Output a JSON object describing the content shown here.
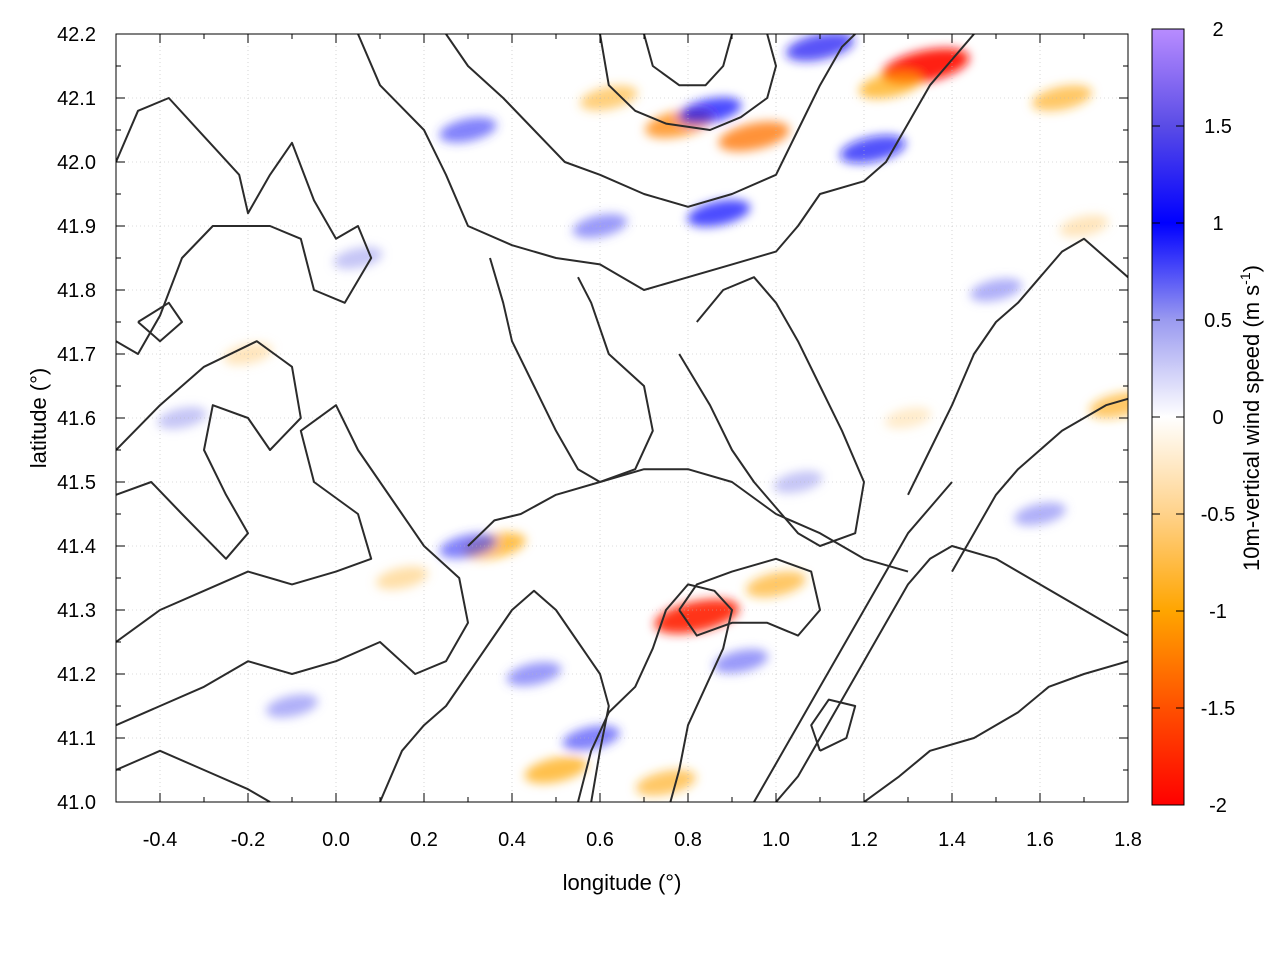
{
  "chart_data": {
    "type": "heatmap",
    "xlabel": "longitude (°)",
    "ylabel": "latitude (°)",
    "xlim": [
      -0.5,
      1.8
    ],
    "ylim": [
      41.0,
      42.2
    ],
    "x_ticks": [
      -0.4,
      -0.2,
      0.0,
      0.2,
      0.4,
      0.6,
      0.8,
      1.0,
      1.2,
      1.4,
      1.6,
      1.8
    ],
    "x_tick_labels": [
      "-0.4",
      "-0.2",
      "0.0",
      "0.2",
      "0.4",
      "0.6",
      "0.8",
      "1.0",
      "1.2",
      "1.4",
      "1.6",
      "1.8"
    ],
    "y_ticks": [
      41.0,
      41.1,
      41.2,
      41.3,
      41.4,
      41.5,
      41.6,
      41.7,
      41.8,
      41.9,
      42.0,
      42.1,
      42.2
    ],
    "y_tick_labels": [
      "41.0",
      "41.1",
      "41.2",
      "41.3",
      "41.4",
      "41.5",
      "41.6",
      "41.7",
      "41.8",
      "41.9",
      "42.0",
      "42.1",
      "42.2"
    ],
    "grid": true,
    "colorbar": {
      "label_main": "10m-vertical wind speed (m s",
      "label_sup": "-1",
      "label_close": ")",
      "range": [
        -2,
        2
      ],
      "ticks": [
        -2,
        -1.5,
        -1,
        -0.5,
        0,
        0.5,
        1,
        1.5,
        2
      ],
      "tick_labels": [
        "-2",
        "-1.5",
        "-1",
        "-0.5",
        "0",
        "0.5",
        "1",
        "1.5",
        "2"
      ],
      "colors": [
        {
          "v": -2.0,
          "c": "#ff0000"
        },
        {
          "v": -1.5,
          "c": "#ff5000"
        },
        {
          "v": -1.0,
          "c": "#ffa500"
        },
        {
          "v": -0.5,
          "c": "#ffd28a"
        },
        {
          "v": 0.0,
          "c": "#ffffff"
        },
        {
          "v": 0.5,
          "c": "#9a9af0"
        },
        {
          "v": 1.0,
          "c": "#0000ff"
        },
        {
          "v": 1.5,
          "c": "#5a4ce6"
        },
        {
          "v": 2.0,
          "c": "#b88cff"
        }
      ]
    },
    "hotspots": [
      {
        "lon": 1.34,
        "lat": 42.15,
        "value": -1.9
      },
      {
        "lon": 1.26,
        "lat": 42.12,
        "value": -1.0
      },
      {
        "lon": 1.65,
        "lat": 42.1,
        "value": -0.9
      },
      {
        "lon": 0.78,
        "lat": 42.06,
        "value": -1.2
      },
      {
        "lon": 0.95,
        "lat": 42.04,
        "value": -1.3
      },
      {
        "lon": 0.82,
        "lat": 41.29,
        "value": -1.8
      },
      {
        "lon": 0.36,
        "lat": 41.4,
        "value": -1.0
      },
      {
        "lon": 0.5,
        "lat": 41.05,
        "value": -1.0
      },
      {
        "lon": 0.75,
        "lat": 41.03,
        "value": -0.9
      },
      {
        "lon": 1.0,
        "lat": 41.34,
        "value": -0.9
      },
      {
        "lon": 1.78,
        "lat": 41.62,
        "value": -0.9
      },
      {
        "lon": 0.62,
        "lat": 42.1,
        "value": -0.8
      },
      {
        "lon": 1.1,
        "lat": 42.18,
        "value": 1.2
      },
      {
        "lon": 0.85,
        "lat": 42.08,
        "value": 1.0
      },
      {
        "lon": 1.22,
        "lat": 42.02,
        "value": 1.1
      },
      {
        "lon": 0.3,
        "lat": 42.05,
        "value": 0.8
      },
      {
        "lon": 0.87,
        "lat": 41.92,
        "value": 1.0
      },
      {
        "lon": 0.6,
        "lat": 41.9,
        "value": 0.7
      },
      {
        "lon": 0.3,
        "lat": 41.4,
        "value": 0.8
      },
      {
        "lon": 0.45,
        "lat": 41.2,
        "value": 0.7
      },
      {
        "lon": 0.92,
        "lat": 41.22,
        "value": 0.7
      },
      {
        "lon": 0.58,
        "lat": 41.1,
        "value": 0.8
      },
      {
        "lon": 1.5,
        "lat": 41.8,
        "value": 0.6
      },
      {
        "lon": 1.6,
        "lat": 41.45,
        "value": 0.6
      },
      {
        "lon": -0.35,
        "lat": 41.6,
        "value": 0.5
      },
      {
        "lon": -0.1,
        "lat": 41.15,
        "value": 0.6
      },
      {
        "lon": 1.7,
        "lat": 41.9,
        "value": -0.5
      },
      {
        "lon": -0.2,
        "lat": 41.7,
        "value": -0.5
      },
      {
        "lon": 1.3,
        "lat": 41.6,
        "value": -0.4
      },
      {
        "lon": 0.15,
        "lat": 41.35,
        "value": -0.6
      },
      {
        "lon": 0.05,
        "lat": 41.85,
        "value": 0.5
      },
      {
        "lon": 1.05,
        "lat": 41.5,
        "value": 0.5
      }
    ],
    "contours": [
      [
        [
          -0.5,
          42.0
        ],
        [
          -0.45,
          42.08
        ],
        [
          -0.38,
          42.1
        ],
        [
          -0.3,
          42.04
        ],
        [
          -0.22,
          41.98
        ],
        [
          -0.2,
          41.92
        ],
        [
          -0.15,
          41.98
        ],
        [
          -0.1,
          42.03
        ],
        [
          -0.05,
          41.94
        ],
        [
          0.0,
          41.88
        ],
        [
          0.05,
          41.9
        ],
        [
          0.08,
          41.85
        ],
        [
          0.02,
          41.78
        ],
        [
          -0.05,
          41.8
        ],
        [
          -0.08,
          41.88
        ],
        [
          -0.15,
          41.9
        ],
        [
          -0.28,
          41.9
        ],
        [
          -0.35,
          41.85
        ],
        [
          -0.4,
          41.76
        ],
        [
          -0.45,
          41.7
        ],
        [
          -0.5,
          41.72
        ]
      ],
      [
        [
          -0.5,
          41.55
        ],
        [
          -0.4,
          41.62
        ],
        [
          -0.3,
          41.68
        ],
        [
          -0.18,
          41.72
        ],
        [
          -0.1,
          41.68
        ],
        [
          -0.08,
          41.6
        ],
        [
          -0.15,
          41.55
        ],
        [
          -0.2,
          41.6
        ],
        [
          -0.28,
          41.62
        ],
        [
          -0.3,
          41.55
        ],
        [
          -0.25,
          41.48
        ],
        [
          -0.2,
          41.42
        ],
        [
          -0.25,
          41.38
        ],
        [
          -0.35,
          41.45
        ],
        [
          -0.42,
          41.5
        ],
        [
          -0.5,
          41.48
        ]
      ],
      [
        [
          -0.5,
          41.25
        ],
        [
          -0.4,
          41.3
        ],
        [
          -0.3,
          41.33
        ],
        [
          -0.2,
          41.36
        ],
        [
          -0.1,
          41.34
        ],
        [
          0.0,
          41.36
        ],
        [
          0.08,
          41.38
        ],
        [
          0.05,
          41.45
        ],
        [
          -0.05,
          41.5
        ],
        [
          -0.08,
          41.58
        ],
        [
          0.0,
          41.62
        ],
        [
          0.05,
          41.55
        ],
        [
          0.1,
          41.5
        ],
        [
          0.15,
          41.45
        ],
        [
          0.2,
          41.4
        ],
        [
          0.28,
          41.35
        ],
        [
          0.3,
          41.28
        ],
        [
          0.25,
          41.22
        ],
        [
          0.18,
          41.2
        ],
        [
          0.1,
          41.25
        ],
        [
          0.0,
          41.22
        ],
        [
          -0.1,
          41.2
        ],
        [
          -0.2,
          41.22
        ],
        [
          -0.3,
          41.18
        ],
        [
          -0.4,
          41.15
        ],
        [
          -0.5,
          41.12
        ]
      ],
      [
        [
          -0.5,
          41.05
        ],
        [
          -0.4,
          41.08
        ],
        [
          -0.3,
          41.05
        ],
        [
          -0.2,
          41.02
        ],
        [
          -0.15,
          41.0
        ]
      ],
      [
        [
          0.05,
          42.2
        ],
        [
          0.1,
          42.12
        ],
        [
          0.2,
          42.05
        ],
        [
          0.25,
          41.98
        ],
        [
          0.3,
          41.9
        ],
        [
          0.4,
          41.87
        ],
        [
          0.5,
          41.85
        ],
        [
          0.6,
          41.84
        ],
        [
          0.7,
          41.8
        ],
        [
          0.8,
          41.82
        ],
        [
          0.9,
          41.84
        ],
        [
          1.0,
          41.86
        ],
        [
          1.05,
          41.9
        ],
        [
          1.1,
          41.95
        ],
        [
          1.2,
          41.97
        ],
        [
          1.25,
          42.0
        ],
        [
          1.3,
          42.06
        ],
        [
          1.35,
          42.12
        ],
        [
          1.4,
          42.16
        ],
        [
          1.45,
          42.2
        ]
      ],
      [
        [
          0.25,
          42.2
        ],
        [
          0.3,
          42.15
        ],
        [
          0.38,
          42.1
        ],
        [
          0.45,
          42.05
        ],
        [
          0.52,
          42.0
        ],
        [
          0.6,
          41.98
        ],
        [
          0.7,
          41.95
        ],
        [
          0.8,
          41.93
        ],
        [
          0.9,
          41.95
        ],
        [
          1.0,
          41.98
        ],
        [
          1.05,
          42.05
        ],
        [
          1.1,
          42.12
        ],
        [
          1.15,
          42.18
        ],
        [
          1.18,
          42.2
        ]
      ],
      [
        [
          0.6,
          42.2
        ],
        [
          0.62,
          42.12
        ],
        [
          0.68,
          42.08
        ],
        [
          0.75,
          42.06
        ],
        [
          0.85,
          42.05
        ],
        [
          0.92,
          42.07
        ],
        [
          0.98,
          42.1
        ],
        [
          1.0,
          42.15
        ],
        [
          0.98,
          42.2
        ]
      ],
      [
        [
          0.7,
          42.2
        ],
        [
          0.72,
          42.15
        ],
        [
          0.78,
          42.12
        ],
        [
          0.84,
          42.12
        ],
        [
          0.88,
          42.15
        ],
        [
          0.9,
          42.2
        ]
      ],
      [
        [
          0.35,
          41.85
        ],
        [
          0.38,
          41.78
        ],
        [
          0.4,
          41.72
        ],
        [
          0.45,
          41.65
        ],
        [
          0.5,
          41.58
        ],
        [
          0.55,
          41.52
        ],
        [
          0.6,
          41.5
        ],
        [
          0.68,
          41.52
        ],
        [
          0.72,
          41.58
        ],
        [
          0.7,
          41.65
        ],
        [
          0.62,
          41.7
        ],
        [
          0.58,
          41.78
        ],
        [
          0.55,
          41.82
        ]
      ],
      [
        [
          0.78,
          41.7
        ],
        [
          0.85,
          41.62
        ],
        [
          0.9,
          41.55
        ],
        [
          0.95,
          41.5
        ],
        [
          1.0,
          41.46
        ],
        [
          1.05,
          41.42
        ],
        [
          1.1,
          41.4
        ],
        [
          1.18,
          41.42
        ],
        [
          1.2,
          41.5
        ],
        [
          1.15,
          41.58
        ],
        [
          1.1,
          41.65
        ],
        [
          1.05,
          41.72
        ],
        [
          1.0,
          41.78
        ],
        [
          0.95,
          41.82
        ],
        [
          0.88,
          41.8
        ],
        [
          0.82,
          41.75
        ]
      ],
      [
        [
          1.3,
          41.48
        ],
        [
          1.35,
          41.55
        ],
        [
          1.4,
          41.62
        ],
        [
          1.45,
          41.7
        ],
        [
          1.5,
          41.75
        ],
        [
          1.55,
          41.78
        ],
        [
          1.6,
          41.82
        ],
        [
          1.65,
          41.86
        ],
        [
          1.7,
          41.88
        ],
        [
          1.75,
          41.85
        ],
        [
          1.8,
          41.82
        ]
      ],
      [
        [
          1.4,
          41.36
        ],
        [
          1.45,
          41.42
        ],
        [
          1.5,
          41.48
        ],
        [
          1.55,
          41.52
        ],
        [
          1.6,
          41.55
        ],
        [
          1.65,
          41.58
        ],
        [
          1.7,
          41.6
        ],
        [
          1.75,
          41.62
        ],
        [
          1.8,
          41.63
        ]
      ],
      [
        [
          0.1,
          41.0
        ],
        [
          0.15,
          41.08
        ],
        [
          0.2,
          41.12
        ],
        [
          0.25,
          41.15
        ],
        [
          0.3,
          41.2
        ],
        [
          0.35,
          41.25
        ],
        [
          0.4,
          41.3
        ],
        [
          0.45,
          41.33
        ],
        [
          0.5,
          41.3
        ],
        [
          0.55,
          41.25
        ],
        [
          0.6,
          41.2
        ],
        [
          0.62,
          41.15
        ],
        [
          0.6,
          41.08
        ],
        [
          0.58,
          41.0
        ]
      ],
      [
        [
          0.55,
          41.0
        ],
        [
          0.58,
          41.08
        ],
        [
          0.62,
          41.14
        ],
        [
          0.68,
          41.18
        ],
        [
          0.72,
          41.24
        ],
        [
          0.75,
          41.3
        ],
        [
          0.8,
          41.34
        ],
        [
          0.86,
          41.33
        ],
        [
          0.9,
          41.3
        ],
        [
          0.88,
          41.24
        ],
        [
          0.84,
          41.18
        ],
        [
          0.8,
          41.12
        ],
        [
          0.78,
          41.05
        ],
        [
          0.76,
          41.0
        ]
      ],
      [
        [
          0.95,
          41.0
        ],
        [
          1.0,
          41.06
        ],
        [
          1.05,
          41.12
        ],
        [
          1.1,
          41.18
        ],
        [
          1.15,
          41.24
        ],
        [
          1.2,
          41.3
        ],
        [
          1.25,
          41.36
        ],
        [
          1.3,
          41.42
        ],
        [
          1.35,
          41.46
        ],
        [
          1.4,
          41.5
        ]
      ],
      [
        [
          1.0,
          41.0
        ],
        [
          1.05,
          41.04
        ],
        [
          1.1,
          41.1
        ],
        [
          1.15,
          41.16
        ],
        [
          1.2,
          41.22
        ],
        [
          1.25,
          41.28
        ],
        [
          1.3,
          41.34
        ],
        [
          1.35,
          41.38
        ],
        [
          1.4,
          41.4
        ],
        [
          1.5,
          41.38
        ],
        [
          1.6,
          41.34
        ],
        [
          1.7,
          41.3
        ],
        [
          1.8,
          41.26
        ]
      ],
      [
        [
          1.2,
          41.0
        ],
        [
          1.28,
          41.04
        ],
        [
          1.35,
          41.08
        ],
        [
          1.45,
          41.1
        ],
        [
          1.55,
          41.14
        ],
        [
          1.62,
          41.18
        ],
        [
          1.7,
          41.2
        ],
        [
          1.8,
          41.22
        ]
      ],
      [
        [
          0.3,
          41.4
        ],
        [
          0.36,
          41.44
        ],
        [
          0.42,
          41.45
        ],
        [
          0.5,
          41.48
        ],
        [
          0.6,
          41.5
        ],
        [
          0.7,
          41.52
        ],
        [
          0.8,
          41.52
        ],
        [
          0.9,
          41.5
        ],
        [
          1.0,
          41.45
        ],
        [
          1.1,
          41.42
        ],
        [
          1.2,
          41.38
        ],
        [
          1.3,
          41.36
        ]
      ],
      [
        [
          0.78,
          41.3
        ],
        [
          0.82,
          41.34
        ],
        [
          0.9,
          41.36
        ],
        [
          1.0,
          41.38
        ],
        [
          1.08,
          41.36
        ],
        [
          1.1,
          41.3
        ],
        [
          1.05,
          41.26
        ],
        [
          0.98,
          41.28
        ],
        [
          0.9,
          41.28
        ],
        [
          0.82,
          41.26
        ],
        [
          0.78,
          41.3
        ]
      ],
      [
        [
          -0.45,
          41.75
        ],
        [
          -0.4,
          41.72
        ],
        [
          -0.35,
          41.75
        ],
        [
          -0.38,
          41.78
        ],
        [
          -0.45,
          41.75
        ]
      ],
      [
        [
          1.1,
          41.08
        ],
        [
          1.16,
          41.1
        ],
        [
          1.18,
          41.15
        ],
        [
          1.12,
          41.16
        ],
        [
          1.08,
          41.12
        ],
        [
          1.1,
          41.08
        ]
      ]
    ]
  }
}
